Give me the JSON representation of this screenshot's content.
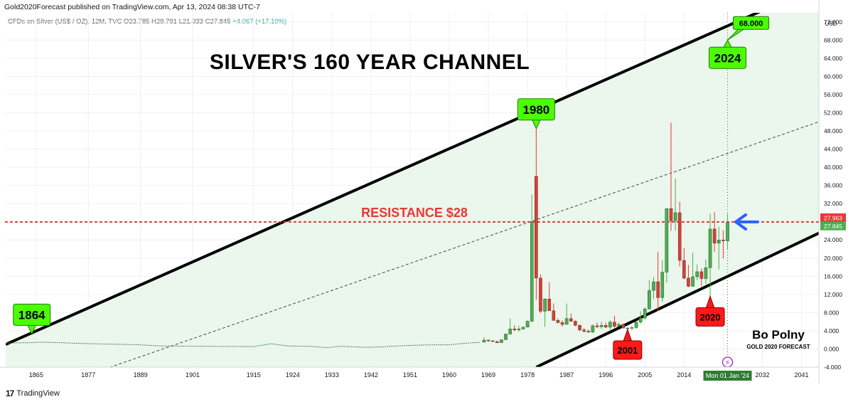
{
  "header": {
    "published": "Gold2020Forecast published on TradingView.com, Apr 13, 2024 08:38 UTC-7",
    "symbol": "CFDs on Silver (US$ / OZ), 12M, TVC",
    "ohlc": "O23.785  H29.791  L21.933  C27.845",
    "change": "+4.067 (+17.10%)"
  },
  "footer": {
    "brand": "TradingView",
    "logo_icon": "tradingview-logo-icon"
  },
  "colors": {
    "up": "#4caf50",
    "down": "#e53935",
    "channel_fill": "#e8f5e9",
    "channel_line": "#000000",
    "resistance": "#e53935",
    "callout_green": "#4cff00",
    "callout_red": "#ff1a1a",
    "arrow": "#2962ff",
    "grid": "#eef0f3"
  },
  "chart_data": {
    "type": "candlestick",
    "title": "SILVER'S 160 YEAR CHANNEL",
    "price_axis_label": "USD",
    "x_range": [
      1858,
      2045
    ],
    "ylim": [
      -4,
      74
    ],
    "grid": true,
    "x_ticks": [
      "1865",
      "1877",
      "1889",
      "1901",
      "1915",
      "1924",
      "1933",
      "1942",
      "1951",
      "1960",
      "1969",
      "1978",
      "1987",
      "1996",
      "2005",
      "2014",
      "2023",
      "2032",
      "2041"
    ],
    "x_tick_years": [
      1865,
      1877,
      1889,
      1901,
      1915,
      1924,
      1933,
      1942,
      1951,
      1960,
      1969,
      1978,
      1987,
      1996,
      2005,
      2014,
      2023,
      2032,
      2041
    ],
    "y_ticks": [
      -4,
      0,
      4,
      8,
      12,
      16,
      20,
      24,
      28,
      32,
      36,
      40,
      44,
      48,
      52,
      56,
      60,
      64,
      68,
      72
    ],
    "y_tick_labels": [
      "-4.000",
      "0.000",
      "4.000",
      "8.000",
      "12.000",
      "16.000",
      "20.000",
      "24.000",
      "28.000",
      "32.000",
      "36.000",
      "40.000",
      "44.000",
      "48.000",
      "52.000",
      "56.000",
      "60.000",
      "64.000",
      "68.000",
      "72.000"
    ],
    "channel": {
      "upper": [
        [
          1858,
          1.0
        ],
        [
          2045,
          80.0
        ]
      ],
      "lower": [
        [
          1980,
          -4.0
        ],
        [
          2045,
          25.5
        ]
      ],
      "mid": [
        [
          1870,
          -8.0
        ],
        [
          2045,
          50.0
        ]
      ]
    },
    "historic_line": [
      [
        1858,
        1.3
      ],
      [
        1864,
        1.4
      ],
      [
        1866,
        1.5
      ],
      [
        1870,
        1.4
      ],
      [
        1876,
        1.2
      ],
      [
        1880,
        1.1
      ],
      [
        1888,
        0.95
      ],
      [
        1894,
        0.65
      ],
      [
        1900,
        0.62
      ],
      [
        1910,
        0.55
      ],
      [
        1915,
        0.52
      ],
      [
        1919,
        1.15
      ],
      [
        1923,
        0.65
      ],
      [
        1928,
        0.58
      ],
      [
        1932,
        0.3
      ],
      [
        1935,
        0.6
      ],
      [
        1941,
        0.35
      ],
      [
        1945,
        0.5
      ],
      [
        1950,
        0.75
      ],
      [
        1955,
        0.9
      ],
      [
        1960,
        0.92
      ],
      [
        1964,
        1.29
      ],
      [
        1967,
        1.45
      ]
    ],
    "candles": [
      {
        "year": 1968,
        "open": 1.5,
        "high": 2.6,
        "low": 1.5,
        "close": 1.95
      },
      {
        "year": 1969,
        "open": 1.95,
        "high": 2.05,
        "low": 1.55,
        "close": 1.8
      },
      {
        "year": 1970,
        "open": 1.8,
        "high": 1.9,
        "low": 1.55,
        "close": 1.64
      },
      {
        "year": 1971,
        "open": 1.64,
        "high": 1.75,
        "low": 1.29,
        "close": 1.39
      },
      {
        "year": 1972,
        "open": 1.39,
        "high": 2.05,
        "low": 1.39,
        "close": 2.04
      },
      {
        "year": 1973,
        "open": 2.04,
        "high": 3.4,
        "low": 1.95,
        "close": 3.28
      },
      {
        "year": 1974,
        "open": 3.28,
        "high": 6.7,
        "low": 3.2,
        "close": 4.4
      },
      {
        "year": 1975,
        "open": 4.4,
        "high": 5.2,
        "low": 3.9,
        "close": 4.2
      },
      {
        "year": 1976,
        "open": 4.2,
        "high": 5.1,
        "low": 3.8,
        "close": 4.4
      },
      {
        "year": 1977,
        "open": 4.4,
        "high": 4.9,
        "low": 4.3,
        "close": 4.8
      },
      {
        "year": 1978,
        "open": 4.8,
        "high": 6.3,
        "low": 4.8,
        "close": 6.1
      },
      {
        "year": 1979,
        "open": 6.1,
        "high": 34.0,
        "low": 5.9,
        "close": 28.0
      },
      {
        "year": 1980,
        "open": 38.0,
        "high": 48.5,
        "low": 10.8,
        "close": 15.6
      },
      {
        "year": 1981,
        "open": 15.6,
        "high": 16.4,
        "low": 7.9,
        "close": 8.3
      },
      {
        "year": 1982,
        "open": 8.3,
        "high": 11.2,
        "low": 4.9,
        "close": 11.0
      },
      {
        "year": 1983,
        "open": 11.0,
        "high": 14.7,
        "low": 8.4,
        "close": 8.4
      },
      {
        "year": 1984,
        "open": 8.4,
        "high": 10.0,
        "low": 6.2,
        "close": 6.3
      },
      {
        "year": 1985,
        "open": 6.3,
        "high": 6.7,
        "low": 5.6,
        "close": 5.8
      },
      {
        "year": 1986,
        "open": 5.8,
        "high": 6.3,
        "low": 4.9,
        "close": 5.4
      },
      {
        "year": 1987,
        "open": 5.4,
        "high": 10.0,
        "low": 5.4,
        "close": 6.7
      },
      {
        "year": 1988,
        "open": 6.7,
        "high": 7.8,
        "low": 6.0,
        "close": 6.1
      },
      {
        "year": 1989,
        "open": 6.1,
        "high": 6.3,
        "low": 5.0,
        "close": 5.2
      },
      {
        "year": 1990,
        "open": 5.2,
        "high": 5.4,
        "low": 3.9,
        "close": 4.2
      },
      {
        "year": 1991,
        "open": 4.2,
        "high": 4.6,
        "low": 3.6,
        "close": 3.9
      },
      {
        "year": 1992,
        "open": 3.9,
        "high": 4.3,
        "low": 3.6,
        "close": 3.7
      },
      {
        "year": 1993,
        "open": 3.7,
        "high": 5.4,
        "low": 3.5,
        "close": 5.1
      },
      {
        "year": 1994,
        "open": 5.1,
        "high": 5.8,
        "low": 4.6,
        "close": 4.9
      },
      {
        "year": 1995,
        "open": 4.9,
        "high": 6.0,
        "low": 4.4,
        "close": 5.2
      },
      {
        "year": 1996,
        "open": 5.2,
        "high": 5.8,
        "low": 4.6,
        "close": 4.8
      },
      {
        "year": 1997,
        "open": 4.8,
        "high": 6.3,
        "low": 4.2,
        "close": 5.9
      },
      {
        "year": 1998,
        "open": 5.9,
        "high": 7.3,
        "low": 4.7,
        "close": 5.0
      },
      {
        "year": 1999,
        "open": 5.0,
        "high": 5.8,
        "low": 4.9,
        "close": 5.4
      },
      {
        "year": 2000,
        "open": 5.4,
        "high": 5.6,
        "low": 4.6,
        "close": 4.6
      },
      {
        "year": 2001,
        "open": 4.6,
        "high": 4.9,
        "low": 4.0,
        "close": 4.6
      },
      {
        "year": 2002,
        "open": 4.6,
        "high": 5.1,
        "low": 4.2,
        "close": 4.7
      },
      {
        "year": 2003,
        "open": 4.7,
        "high": 6.0,
        "low": 4.4,
        "close": 5.9
      },
      {
        "year": 2004,
        "open": 5.9,
        "high": 8.3,
        "low": 5.5,
        "close": 6.8
      },
      {
        "year": 2005,
        "open": 6.8,
        "high": 9.2,
        "low": 6.4,
        "close": 8.8
      },
      {
        "year": 2006,
        "open": 8.8,
        "high": 15.2,
        "low": 8.7,
        "close": 12.9
      },
      {
        "year": 2007,
        "open": 12.9,
        "high": 15.8,
        "low": 11.0,
        "close": 14.8
      },
      {
        "year": 2008,
        "open": 14.8,
        "high": 21.4,
        "low": 8.4,
        "close": 11.3
      },
      {
        "year": 2009,
        "open": 11.3,
        "high": 19.5,
        "low": 10.4,
        "close": 16.9
      },
      {
        "year": 2010,
        "open": 16.9,
        "high": 31.0,
        "low": 14.6,
        "close": 30.9
      },
      {
        "year": 2011,
        "open": 30.9,
        "high": 49.8,
        "low": 26.0,
        "close": 28.2
      },
      {
        "year": 2012,
        "open": 28.2,
        "high": 37.5,
        "low": 26.1,
        "close": 30.0
      },
      {
        "year": 2013,
        "open": 30.0,
        "high": 32.4,
        "low": 18.2,
        "close": 19.5
      },
      {
        "year": 2014,
        "open": 19.5,
        "high": 22.2,
        "low": 15.3,
        "close": 15.6
      },
      {
        "year": 2015,
        "open": 15.6,
        "high": 18.5,
        "low": 13.6,
        "close": 13.8
      },
      {
        "year": 2016,
        "open": 13.8,
        "high": 21.2,
        "low": 13.7,
        "close": 15.9
      },
      {
        "year": 2017,
        "open": 15.9,
        "high": 18.6,
        "low": 15.2,
        "close": 17.0
      },
      {
        "year": 2018,
        "open": 17.0,
        "high": 17.7,
        "low": 13.9,
        "close": 15.5
      },
      {
        "year": 2019,
        "open": 15.5,
        "high": 19.7,
        "low": 14.3,
        "close": 17.9
      },
      {
        "year": 2020,
        "open": 17.9,
        "high": 29.8,
        "low": 11.6,
        "close": 26.4
      },
      {
        "year": 2021,
        "open": 26.4,
        "high": 30.1,
        "low": 21.4,
        "close": 23.3
      },
      {
        "year": 2022,
        "open": 23.3,
        "high": 26.9,
        "low": 17.5,
        "close": 24.0
      },
      {
        "year": 2023,
        "open": 24.0,
        "high": 26.1,
        "low": 19.9,
        "close": 23.8
      },
      {
        "year": 2024,
        "open": 23.785,
        "high": 29.791,
        "low": 21.933,
        "close": 27.845
      }
    ],
    "resistance": {
      "value": 27.963,
      "label": "RESISTANCE $28"
    },
    "price_labels": [
      {
        "value": 27.963,
        "text": "27.963",
        "color": "#e53935"
      },
      {
        "value": 27.845,
        "text": "27.845",
        "color": "#4caf50"
      }
    ],
    "date_marker": {
      "year": 2024,
      "text": "Mon 01 Jan '24"
    },
    "annotations": [
      {
        "text": "1864",
        "kind": "green",
        "point": [
          1864,
          3.3
        ]
      },
      {
        "text": "1980",
        "kind": "green",
        "point": [
          1980,
          48.5
        ]
      },
      {
        "text": "2024",
        "kind": "green",
        "point": [
          2024,
          68.0
        ]
      },
      {
        "text": "68.000",
        "kind": "green-tag",
        "point": [
          2024,
          68.0
        ]
      },
      {
        "text": "2001",
        "kind": "red",
        "point": [
          2001,
          4.3
        ]
      },
      {
        "text": "2020",
        "kind": "red",
        "point": [
          2020,
          11.6
        ]
      }
    ],
    "author": {
      "name": "Bo Polny",
      "tagline": "GOLD 2020 FORECAST"
    }
  }
}
